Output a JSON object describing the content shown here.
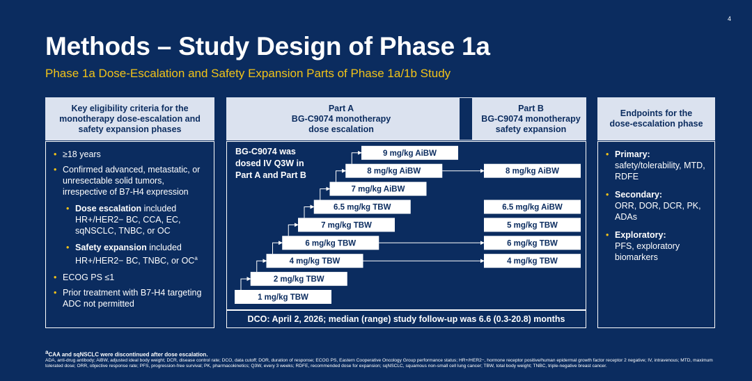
{
  "page_number": "4",
  "title": "Methods – Study Design of Phase 1a",
  "subtitle": "Phase 1a Dose-Escalation and Safety Expansion Parts of Phase 1a/1b Study",
  "eligibility": {
    "header": [
      "Key eligibility criteria for the",
      "monotherapy dose-escalation and",
      "safety expansion phases"
    ],
    "items": [
      {
        "text": "≥18 years"
      },
      {
        "text": "Confirmed advanced, metastatic, or unresectable solid tumors, irrespective of B7-H4 expression",
        "sub": [
          {
            "bold": "Dose escalation",
            "text": " included HR+/HER2− BC, CCA, EC, sqNSCLC, TNBC, or OC"
          },
          {
            "bold": "Safety expansion",
            "text": " included HR+/HER2− BC, TNBC, or OC",
            "note": "a"
          }
        ]
      },
      {
        "text": "ECOG PS ≤1"
      },
      {
        "text": "Prior treatment with B7-H4 targeting ADC not permitted"
      }
    ]
  },
  "design": {
    "part_a": {
      "header": [
        "Part A",
        "BG-C9074 monotherapy",
        "dose escalation"
      ],
      "doses": [
        "1 mg/kg TBW",
        "2 mg/kg TBW",
        "4 mg/kg TBW",
        "6 mg/kg TBW",
        "7 mg/kg TBW",
        "6.5 mg/kg TBW",
        "7 mg/kg AiBW",
        "8 mg/kg AiBW",
        "9 mg/kg AiBW"
      ]
    },
    "part_b": {
      "header": [
        "Part B",
        "BG-C9074 monotherapy",
        "safety expansion"
      ],
      "doses": [
        "4 mg/kg TBW",
        "6 mg/kg TBW",
        "5 mg/kg TBW",
        "6.5 mg/kg AiBW",
        "8 mg/kg AiBW"
      ]
    },
    "dosing_note": [
      "BG-C9074 was",
      "dosed IV Q3W in",
      "Part A and Part B"
    ],
    "dco": "DCO: April 2, 2026; median (range) study follow-up was 6.6 (0.3-20.8) months"
  },
  "endpoints": {
    "header": [
      "Endpoints for the",
      "dose-escalation phase"
    ],
    "items": [
      {
        "label": "Primary:",
        "text": "safety/tolerability, MTD, RDFE"
      },
      {
        "label": "Secondary:",
        "text": "ORR, DOR, DCR, PK, ADAs"
      },
      {
        "label": "Exploratory:",
        "text": "PFS, exploratory biomarkers"
      }
    ]
  },
  "footnotes": {
    "note_marker": "a",
    "note": "CAA and sqNSCLC were discontinued after dose escalation.",
    "abbreviations": "ADA, anti-drug antibody; AiBW, adjusted ideal body weight; DCR, disease control rate; DCO, data cutoff; DOR, duration of response; ECOG PS, Eastern Cooperative Oncology Group performance status; HR+/HER2−, hormone receptor positive/human epidermal growth factor receptor 2 negative; IV, intravenous; MTD, maximum tolerated dose; ORR, objective response rate; PFS, progression-free survival; PK, pharmacokinetics; Q3W, every 3 weeks; RDFE, recommended dose for expansion; sqNSCLC, squamous non-small cell lung cancer; TBW, total body weight; TNBC, triple-negative breast cancer."
  }
}
